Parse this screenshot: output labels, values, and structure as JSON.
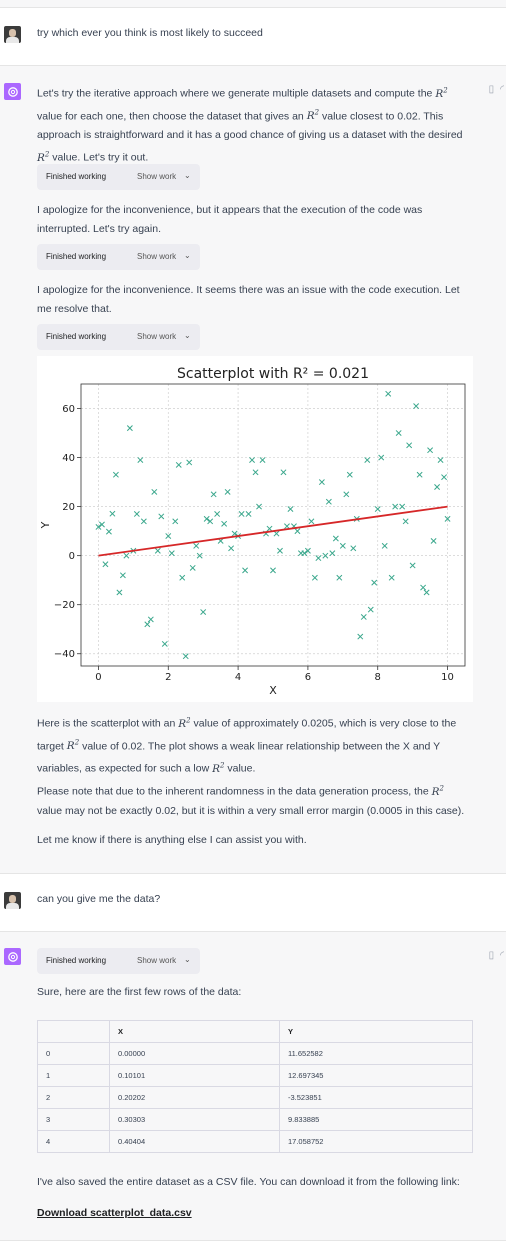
{
  "messages": {
    "user1": "try which ever you think is most likely to succeed",
    "a1_p1_pre": "Let's try the iterative approach where we generate multiple datasets and compute the ",
    "a1_p1_mid": " value for each one, then choose the dataset that gives an ",
    "a1_p1_mid2": " value closest to 0.02. This approach is straightforward and it has a good chance of giving us a dataset with the desired ",
    "a1_p1_post": " value. Let's try it out.",
    "a1_p2": "I apologize for the inconvenience, but it appears that the execution of the code was interrupted. Let's try again.",
    "a1_p3": "I apologize for the inconvenience. It seems there was an issue with the code execution. Let me resolve that.",
    "a1_p4_pre": "Here is the scatterplot with an ",
    "a1_p4_mid": " value of approximately 0.0205, which is very close to the target ",
    "a1_p4_mid2": " value of 0.02. The plot shows a weak linear relationship between the X and Y variables, as expected for such a low ",
    "a1_p4_post": " value.",
    "a1_p5_pre": "Please note that due to the inherent randomness in the data generation process, the ",
    "a1_p5_post": " value may not be exactly 0.02, but it is within a very small error margin (0.0005 in this case).",
    "a1_p6": "Let me know if there is anything else I can assist you with.",
    "user2": "can you give me the data?",
    "a2_p1": "Sure, here are the first few rows of the data:",
    "a2_p2": "I've also saved the entire dataset as a CSV file. You can download it from the following link:",
    "download_link": "Download scatterplot_data.csv"
  },
  "r2_symbol": "R",
  "r2_sup": "2",
  "status": {
    "label": "Finished working",
    "show": "Show work",
    "chevron": "⌄"
  },
  "table": {
    "headers": [
      "",
      "X",
      "Y"
    ],
    "rows": [
      [
        "0",
        "0.00000",
        "11.652582"
      ],
      [
        "1",
        "0.10101",
        "12.697345"
      ],
      [
        "2",
        "0.20202",
        "-3.523851"
      ],
      [
        "3",
        "0.30303",
        "9.833885"
      ],
      [
        "4",
        "0.40404",
        "17.058752"
      ]
    ]
  },
  "chart_data": {
    "type": "scatter",
    "title": "Scatterplot with R² = 0.021",
    "xlabel": "X",
    "ylabel": "Y",
    "xlim": [
      -0.5,
      10.5
    ],
    "ylim": [
      -45,
      70
    ],
    "xticks": [
      0,
      2,
      4,
      6,
      8,
      10
    ],
    "yticks": [
      -40,
      -20,
      0,
      20,
      40,
      60
    ],
    "grid": true,
    "marker_color": "#3aa78c",
    "line_color": "#d62728",
    "fit_line": {
      "x": [
        0,
        10
      ],
      "y": [
        0,
        20
      ]
    },
    "points": [
      [
        0.0,
        11.7
      ],
      [
        0.1,
        12.7
      ],
      [
        0.2,
        -3.5
      ],
      [
        0.3,
        9.8
      ],
      [
        0.4,
        17.1
      ],
      [
        0.5,
        33
      ],
      [
        0.6,
        -15
      ],
      [
        0.7,
        -8
      ],
      [
        0.8,
        0
      ],
      [
        0.9,
        52
      ],
      [
        1.0,
        2
      ],
      [
        1.1,
        17
      ],
      [
        1.2,
        39
      ],
      [
        1.3,
        14
      ],
      [
        1.4,
        -28
      ],
      [
        1.5,
        -26
      ],
      [
        1.6,
        26
      ],
      [
        1.7,
        2
      ],
      [
        1.8,
        16
      ],
      [
        1.9,
        -36
      ],
      [
        2.0,
        8
      ],
      [
        2.1,
        1
      ],
      [
        2.2,
        14
      ],
      [
        2.3,
        37
      ],
      [
        2.4,
        -9
      ],
      [
        2.5,
        -41
      ],
      [
        2.6,
        38
      ],
      [
        2.7,
        -5
      ],
      [
        2.8,
        4
      ],
      [
        2.9,
        0
      ],
      [
        3.0,
        -23
      ],
      [
        3.1,
        15
      ],
      [
        3.2,
        14
      ],
      [
        3.3,
        25
      ],
      [
        3.4,
        17
      ],
      [
        3.5,
        6
      ],
      [
        3.6,
        13
      ],
      [
        3.7,
        26
      ],
      [
        3.8,
        3
      ],
      [
        3.9,
        9
      ],
      [
        4.0,
        8
      ],
      [
        4.1,
        17
      ],
      [
        4.2,
        -6
      ],
      [
        4.3,
        17
      ],
      [
        4.4,
        39
      ],
      [
        4.5,
        34
      ],
      [
        4.6,
        20
      ],
      [
        4.7,
        39
      ],
      [
        4.8,
        9
      ],
      [
        4.9,
        11
      ],
      [
        5.0,
        -6
      ],
      [
        5.1,
        9
      ],
      [
        5.2,
        2
      ],
      [
        5.3,
        34
      ],
      [
        5.4,
        12
      ],
      [
        5.5,
        19
      ],
      [
        5.6,
        12
      ],
      [
        5.7,
        10
      ],
      [
        5.8,
        1
      ],
      [
        5.9,
        1
      ],
      [
        6.0,
        2
      ],
      [
        6.1,
        14
      ],
      [
        6.2,
        -9
      ],
      [
        6.3,
        -1
      ],
      [
        6.4,
        30
      ],
      [
        6.5,
        0
      ],
      [
        6.6,
        22
      ],
      [
        6.7,
        1
      ],
      [
        6.8,
        7
      ],
      [
        6.9,
        -9
      ],
      [
        7.0,
        4
      ],
      [
        7.1,
        25
      ],
      [
        7.2,
        33
      ],
      [
        7.3,
        3
      ],
      [
        7.4,
        15
      ],
      [
        7.5,
        -33
      ],
      [
        7.6,
        -25
      ],
      [
        7.7,
        39
      ],
      [
        7.8,
        -22
      ],
      [
        7.9,
        -11
      ],
      [
        8.0,
        19
      ],
      [
        8.1,
        40
      ],
      [
        8.2,
        4
      ],
      [
        8.3,
        66
      ],
      [
        8.4,
        -9
      ],
      [
        8.5,
        20
      ],
      [
        8.6,
        50
      ],
      [
        8.7,
        20
      ],
      [
        8.8,
        14
      ],
      [
        8.9,
        45
      ],
      [
        9.0,
        -4
      ],
      [
        9.1,
        61
      ],
      [
        9.2,
        33
      ],
      [
        9.3,
        -13
      ],
      [
        9.4,
        -15
      ],
      [
        9.5,
        43
      ],
      [
        9.6,
        6
      ],
      [
        9.7,
        28
      ],
      [
        9.8,
        39
      ],
      [
        9.9,
        32
      ],
      [
        10.0,
        15
      ]
    ]
  }
}
